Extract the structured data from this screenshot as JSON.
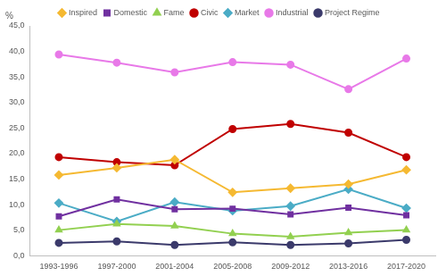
{
  "chart_data": {
    "type": "line",
    "ylabel": "%",
    "categories": [
      "1993-1996",
      "1997-2000",
      "2001-2004",
      "2005-2008",
      "2009-2012",
      "2013-2016",
      "2017-2020"
    ],
    "series": [
      {
        "name": "Inspired",
        "color": "#f5b932",
        "marker": "diamond",
        "values": [
          15.8,
          17.2,
          18.8,
          12.4,
          13.2,
          14.0,
          16.8
        ]
      },
      {
        "name": "Domestic",
        "color": "#7030a0",
        "marker": "square",
        "values": [
          7.7,
          11.0,
          9.1,
          9.2,
          8.1,
          9.4,
          7.9
        ]
      },
      {
        "name": "Fame",
        "color": "#92d050",
        "marker": "triangle",
        "values": [
          5.0,
          6.2,
          5.8,
          4.3,
          3.7,
          4.5,
          5.0
        ]
      },
      {
        "name": "Civic",
        "color": "#c00000",
        "marker": "circle",
        "values": [
          19.3,
          18.3,
          17.7,
          24.8,
          25.8,
          24.1,
          19.3
        ]
      },
      {
        "name": "Market",
        "color": "#4bacc6",
        "marker": "diamond",
        "values": [
          10.3,
          6.7,
          10.5,
          8.8,
          9.7,
          13.0,
          9.3
        ]
      },
      {
        "name": "Industrial",
        "color": "#e879e8",
        "marker": "circle",
        "values": [
          39.4,
          37.8,
          35.9,
          37.9,
          37.4,
          32.6,
          38.6
        ]
      },
      {
        "name": "Project Regime",
        "color": "#3b3a6b",
        "marker": "circle",
        "values": [
          2.5,
          2.8,
          2.1,
          2.6,
          2.1,
          2.4,
          3.1
        ]
      }
    ],
    "ylim": [
      0,
      45
    ],
    "yticks": [
      {
        "value": 0,
        "label": "0,0"
      },
      {
        "value": 5,
        "label": "5,0"
      },
      {
        "value": 10,
        "label": "10,0"
      },
      {
        "value": 15,
        "label": "15,0"
      },
      {
        "value": 20,
        "label": "20,0"
      },
      {
        "value": 25,
        "label": "25,0"
      },
      {
        "value": 30,
        "label": "30,0"
      },
      {
        "value": 35,
        "label": "35,0"
      },
      {
        "value": 40,
        "label": "40,0"
      },
      {
        "value": 45,
        "label": "45,0"
      }
    ],
    "grid": false,
    "legend": "top"
  }
}
